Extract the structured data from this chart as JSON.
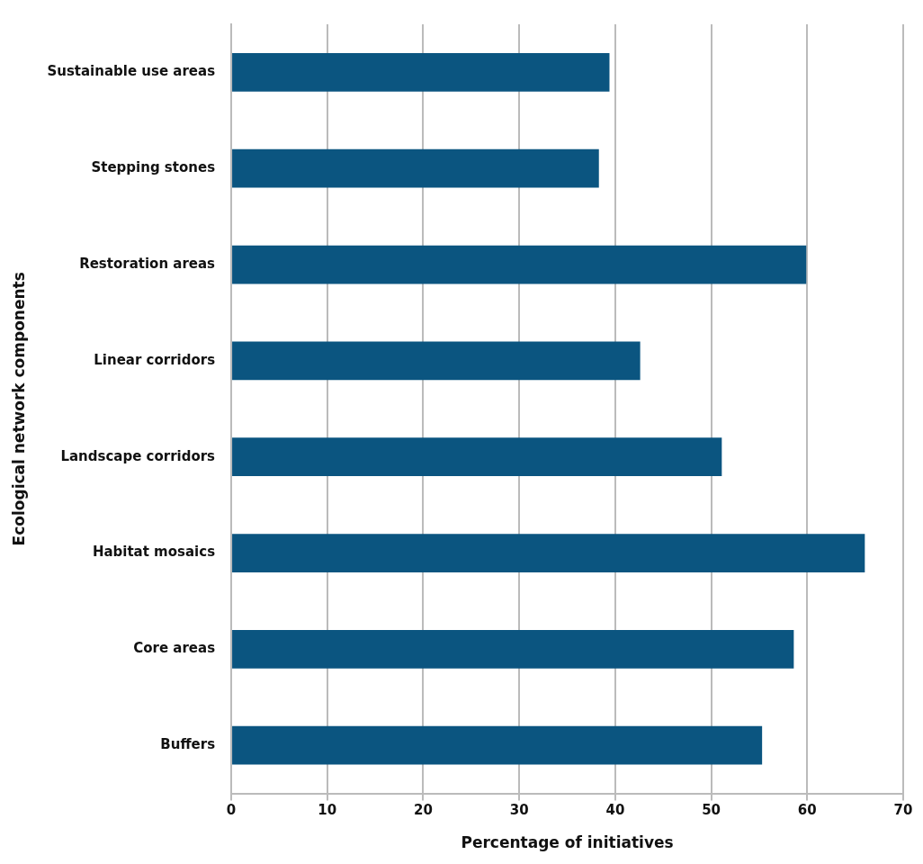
{
  "chart_data": {
    "type": "bar",
    "orientation": "horizontal",
    "xlabel": "Percentage of initiatives",
    "ylabel": "Ecological network components",
    "categories": [
      "Sustainable use areas",
      "Stepping stones",
      "Restoration areas",
      "Linear corridors",
      "Landscape corridors",
      "Habitat mosaics",
      "Core areas",
      "Buffers"
    ],
    "values": [
      39.4,
      38.3,
      59.9,
      42.6,
      51.1,
      66.0,
      58.6,
      55.3
    ],
    "color": "#0b5580",
    "xlim": [
      0,
      70
    ],
    "xticks": [
      0,
      10,
      20,
      30,
      40,
      50,
      60,
      70
    ],
    "grid": "x",
    "legend": false
  }
}
